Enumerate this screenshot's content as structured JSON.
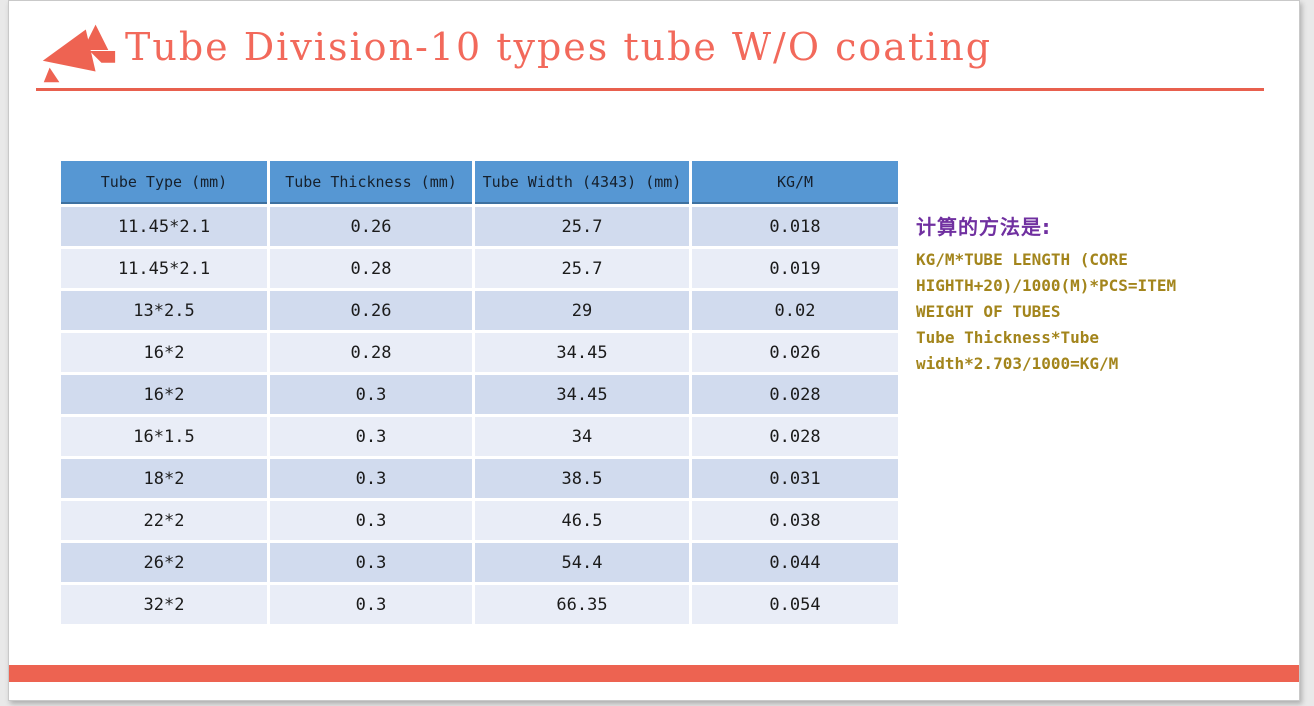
{
  "slide": {
    "title": "Tube Division-10 types tube W/O coating"
  },
  "colors": {
    "accent_coral": "#f2695b",
    "rule_red": "#e8604e",
    "bottom_bar_red": "#ed6351",
    "table_header_blue": "#5697d3",
    "table_header_border": "#3e71a0",
    "row_dark": "#d1dbee",
    "row_light": "#e9edf7",
    "note_heading_purple": "#7030a0",
    "note_text_gold": "#a3851c"
  },
  "table": {
    "columns": [
      "Tube Type (mm)",
      "Tube Thickness (mm)",
      "Tube Width (4343) (mm)",
      "KG/M"
    ],
    "rows": [
      [
        "11.45*2.1",
        "0.26",
        "25.7",
        "0.018"
      ],
      [
        "11.45*2.1",
        "0.28",
        "25.7",
        "0.019"
      ],
      [
        "13*2.5",
        "0.26",
        "29",
        "0.02"
      ],
      [
        "16*2",
        "0.28",
        "34.45",
        "0.026"
      ],
      [
        "16*2",
        "0.3",
        "34.45",
        "0.028"
      ],
      [
        "16*1.5",
        "0.3",
        "34",
        "0.028"
      ],
      [
        "18*2",
        "0.3",
        "38.5",
        "0.031"
      ],
      [
        "22*2",
        "0.3",
        "46.5",
        "0.038"
      ],
      [
        "26*2",
        "0.3",
        "54.4",
        "0.044"
      ],
      [
        "32*2",
        "0.3",
        "66.35",
        "0.054"
      ]
    ]
  },
  "note": {
    "heading": "计算的方法是:",
    "lines": [
      "KG/M*TUBE LENGTH (CORE",
      "HIGHTH+20)/1000(M)*PCS=ITEM",
      "WEIGHT OF TUBES",
      "Tube Thickness*Tube",
      "width*2.703/1000=KG/M"
    ]
  }
}
